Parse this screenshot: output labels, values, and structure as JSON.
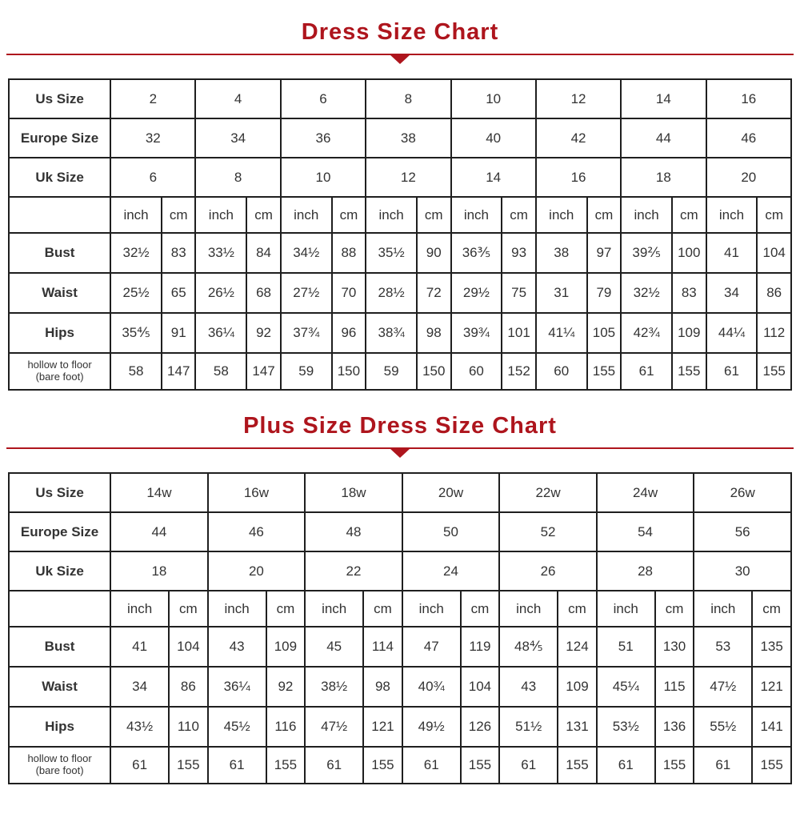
{
  "accent_colors": {
    "title_red": "#AE151D",
    "header_blue": "#7CCDF1",
    "cell_gray": "#E7E7E7",
    "border_dark": "#1F1F1F"
  },
  "chart_data": [
    {
      "type": "table",
      "title": "Dress Size Chart",
      "unit_labels": [
        "inch",
        "cm"
      ],
      "size_rows": [
        {
          "label": "Us Size",
          "values": [
            "2",
            "4",
            "6",
            "8",
            "10",
            "12",
            "14",
            "16"
          ]
        },
        {
          "label": "Europe Size",
          "values": [
            "32",
            "34",
            "36",
            "38",
            "40",
            "42",
            "44",
            "46"
          ]
        },
        {
          "label": "Uk Size",
          "values": [
            "6",
            "8",
            "10",
            "12",
            "14",
            "16",
            "18",
            "20"
          ]
        }
      ],
      "measure_rows": [
        {
          "label": "Bust",
          "sublabel": "",
          "pairs": [
            [
              "32½",
              "83"
            ],
            [
              "33½",
              "84"
            ],
            [
              "34½",
              "88"
            ],
            [
              "35½",
              "90"
            ],
            [
              "36⅗",
              "93"
            ],
            [
              "38",
              "97"
            ],
            [
              "39⅖",
              "100"
            ],
            [
              "41",
              "104"
            ]
          ]
        },
        {
          "label": "Waist",
          "sublabel": "",
          "pairs": [
            [
              "25½",
              "65"
            ],
            [
              "26½",
              "68"
            ],
            [
              "27½",
              "70"
            ],
            [
              "28½",
              "72"
            ],
            [
              "29½",
              "75"
            ],
            [
              "31",
              "79"
            ],
            [
              "32½",
              "83"
            ],
            [
              "34",
              "86"
            ]
          ]
        },
        {
          "label": "Hips",
          "sublabel": "",
          "pairs": [
            [
              "35⅘",
              "91"
            ],
            [
              "36¼",
              "92"
            ],
            [
              "37¾",
              "96"
            ],
            [
              "38¾",
              "98"
            ],
            [
              "39¾",
              "101"
            ],
            [
              "41¼",
              "105"
            ],
            [
              "42¾",
              "109"
            ],
            [
              "44¼",
              "112"
            ]
          ]
        },
        {
          "label": "hollow to floor",
          "sublabel": "(bare foot)",
          "pairs": [
            [
              "58",
              "147"
            ],
            [
              "58",
              "147"
            ],
            [
              "59",
              "150"
            ],
            [
              "59",
              "150"
            ],
            [
              "60",
              "152"
            ],
            [
              "60",
              "155"
            ],
            [
              "61",
              "155"
            ],
            [
              "61",
              "155"
            ]
          ]
        }
      ]
    },
    {
      "type": "table",
      "title": "Plus Size Dress Size Chart",
      "unit_labels": [
        "inch",
        "cm"
      ],
      "size_rows": [
        {
          "label": "Us Size",
          "values": [
            "14w",
            "16w",
            "18w",
            "20w",
            "22w",
            "24w",
            "26w"
          ]
        },
        {
          "label": "Europe Size",
          "values": [
            "44",
            "46",
            "48",
            "50",
            "52",
            "54",
            "56"
          ]
        },
        {
          "label": "Uk Size",
          "values": [
            "18",
            "20",
            "22",
            "24",
            "26",
            "28",
            "30"
          ]
        }
      ],
      "measure_rows": [
        {
          "label": "Bust",
          "sublabel": "",
          "pairs": [
            [
              "41",
              "104"
            ],
            [
              "43",
              "109"
            ],
            [
              "45",
              "114"
            ],
            [
              "47",
              "119"
            ],
            [
              "48⅘",
              "124"
            ],
            [
              "51",
              "130"
            ],
            [
              "53",
              "135"
            ]
          ]
        },
        {
          "label": "Waist",
          "sublabel": "",
          "pairs": [
            [
              "34",
              "86"
            ],
            [
              "36¼",
              "92"
            ],
            [
              "38½",
              "98"
            ],
            [
              "40¾",
              "104"
            ],
            [
              "43",
              "109"
            ],
            [
              "45¼",
              "115"
            ],
            [
              "47½",
              "121"
            ]
          ]
        },
        {
          "label": "Hips",
          "sublabel": "",
          "pairs": [
            [
              "43½",
              "110"
            ],
            [
              "45½",
              "116"
            ],
            [
              "47½",
              "121"
            ],
            [
              "49½",
              "126"
            ],
            [
              "51½",
              "131"
            ],
            [
              "53½",
              "136"
            ],
            [
              "55½",
              "141"
            ]
          ]
        },
        {
          "label": "hollow to floor",
          "sublabel": "(bare foot)",
          "pairs": [
            [
              "61",
              "155"
            ],
            [
              "61",
              "155"
            ],
            [
              "61",
              "155"
            ],
            [
              "61",
              "155"
            ],
            [
              "61",
              "155"
            ],
            [
              "61",
              "155"
            ],
            [
              "61",
              "155"
            ]
          ]
        }
      ]
    }
  ]
}
